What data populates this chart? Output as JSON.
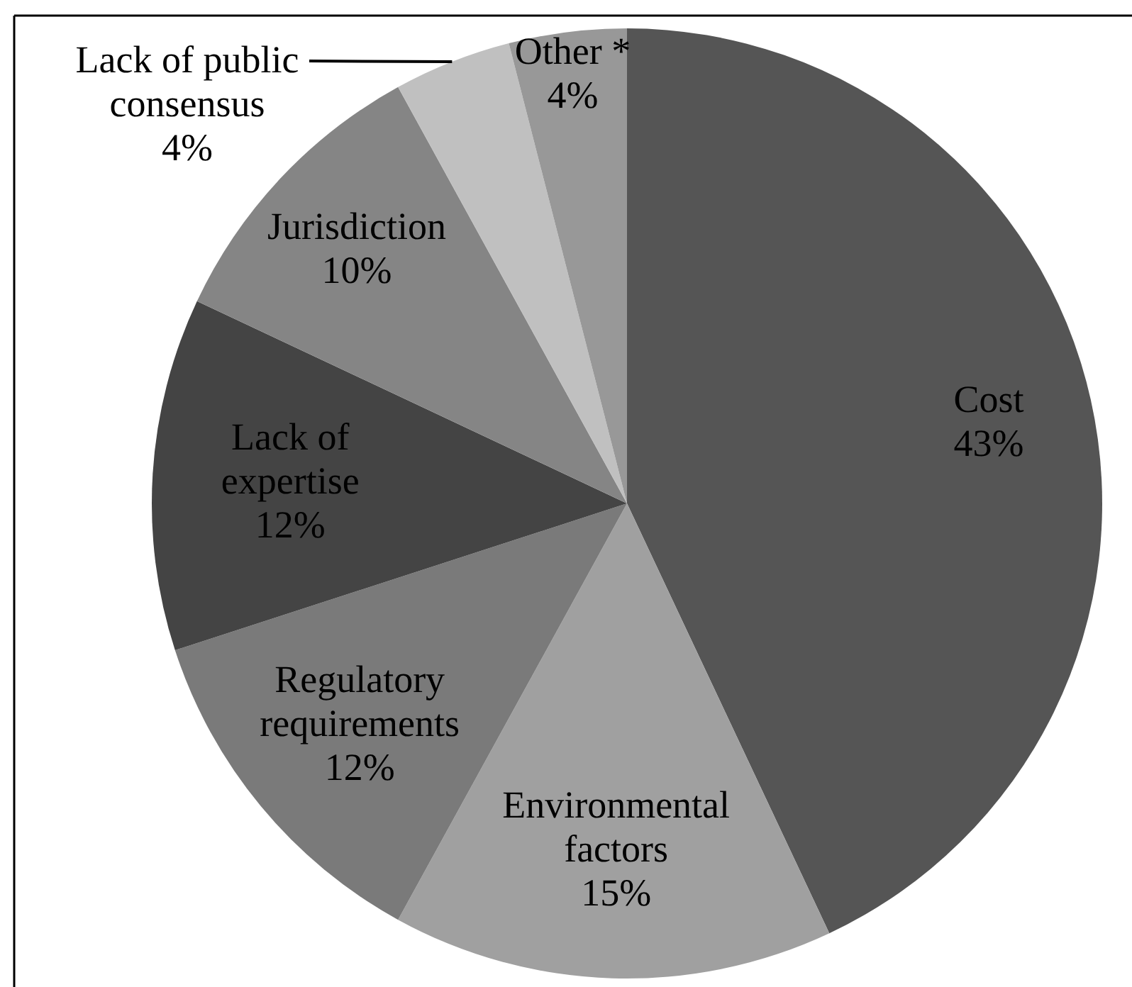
{
  "chart_data": {
    "type": "pie",
    "categories": [
      "Cost",
      "Environmental factors",
      "Regulatory requirements",
      "Lack of expertise",
      "Jurisdiction",
      "Lack of public consensus",
      "Other *"
    ],
    "values": [
      43,
      15,
      12,
      12,
      10,
      4,
      4
    ],
    "colors": [
      "#555555",
      "#a0a0a0",
      "#7a7a7a",
      "#444444",
      "#858585",
      "#c0c0c0",
      "#989898"
    ],
    "value_labels": [
      "43%",
      "15%",
      "12%",
      "12%",
      "10%",
      "4%",
      "4%"
    ]
  }
}
